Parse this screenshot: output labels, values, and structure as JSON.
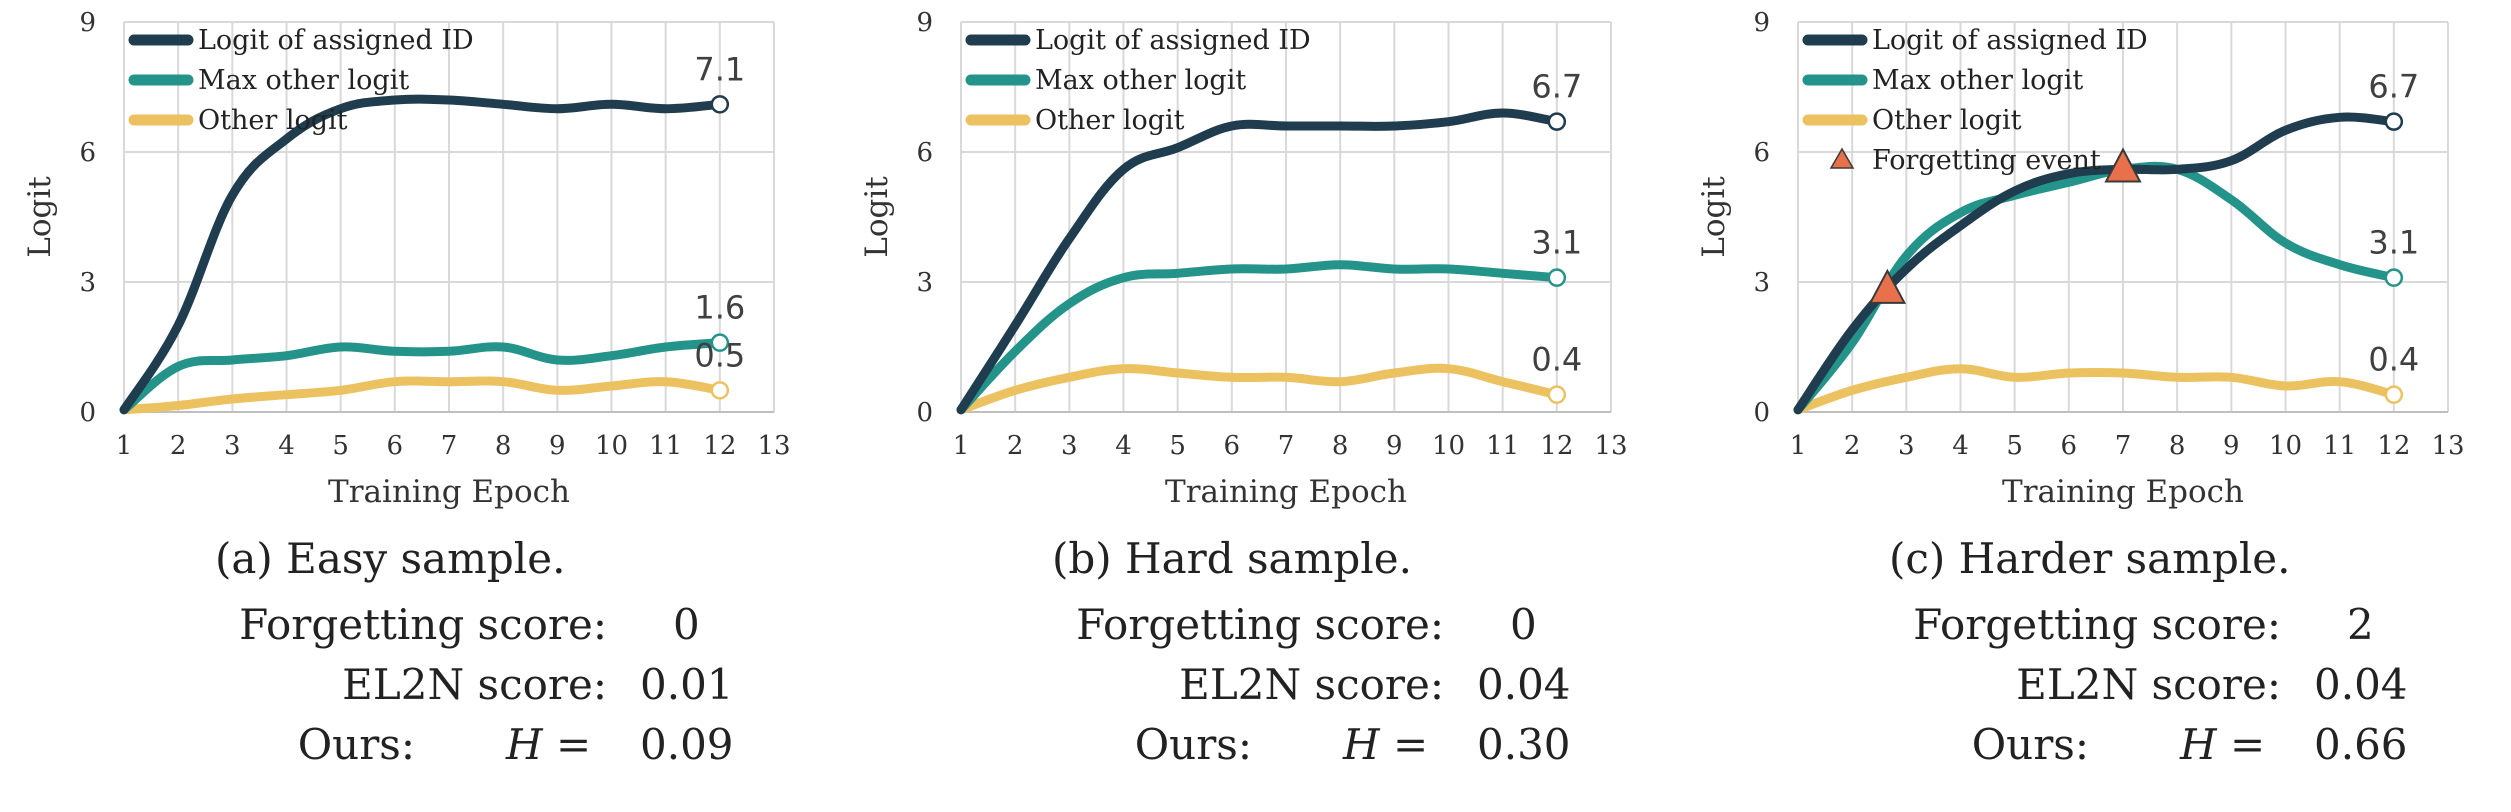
{
  "chart_data": [
    {
      "type": "line",
      "id": "a",
      "xlabel": "Training Epoch",
      "ylabel": "Logit",
      "xlim": [
        1,
        13
      ],
      "ylim": [
        0,
        9
      ],
      "x_ticks": [
        "1",
        "2",
        "3",
        "4",
        "5",
        "6",
        "7",
        "8",
        "9",
        "10",
        "11",
        "12",
        "13"
      ],
      "y_ticks": [
        "0",
        "3",
        "6",
        "9"
      ],
      "grid": true,
      "legend_position": "top-left",
      "x": [
        1,
        2,
        3,
        4,
        5,
        6,
        7,
        8,
        9,
        10,
        11,
        12
      ],
      "series": [
        {
          "name": "Logit of assigned ID",
          "color": "#1f3d4f",
          "values": [
            0.05,
            2.0,
            5.0,
            6.3,
            7.0,
            7.2,
            7.2,
            7.1,
            7.0,
            7.1,
            7.0,
            7.1
          ],
          "end_label": "7.1"
        },
        {
          "name": "Max other logit",
          "color": "#24948a",
          "values": [
            0.05,
            1.05,
            1.2,
            1.3,
            1.5,
            1.4,
            1.4,
            1.5,
            1.2,
            1.3,
            1.5,
            1.6
          ],
          "end_label": "1.6"
        },
        {
          "name": "Other logit",
          "color": "#ecc261",
          "values": [
            0.05,
            0.15,
            0.3,
            0.4,
            0.5,
            0.7,
            0.7,
            0.7,
            0.5,
            0.6,
            0.7,
            0.5
          ],
          "end_label": "0.5"
        }
      ],
      "forgetting_events": [],
      "caption": {
        "title": "(a) Easy sample.",
        "forgetting_label": "Forgetting score:",
        "forgetting_value": "0",
        "el2n_label": "EL2N score:",
        "el2n_value": "0.01",
        "ours_label": "Ours:",
        "h_label": "H =",
        "ours_value": "0.09"
      }
    },
    {
      "type": "line",
      "id": "b",
      "xlabel": "Training Epoch",
      "ylabel": "Logit",
      "xlim": [
        1,
        13
      ],
      "ylim": [
        0,
        9
      ],
      "x_ticks": [
        "1",
        "2",
        "3",
        "4",
        "5",
        "6",
        "7",
        "8",
        "9",
        "10",
        "11",
        "12",
        "13"
      ],
      "y_ticks": [
        "0",
        "3",
        "6",
        "9"
      ],
      "grid": true,
      "legend_position": "top-left",
      "x": [
        1,
        2,
        3,
        4,
        5,
        6,
        7,
        8,
        9,
        10,
        11,
        12
      ],
      "series": [
        {
          "name": "Logit of assigned ID",
          "color": "#1f3d4f",
          "values": [
            0.05,
            2.0,
            4.0,
            5.6,
            6.1,
            6.6,
            6.6,
            6.6,
            6.6,
            6.7,
            6.9,
            6.7
          ],
          "end_label": "6.7"
        },
        {
          "name": "Max other logit",
          "color": "#24948a",
          "values": [
            0.05,
            1.4,
            2.5,
            3.1,
            3.2,
            3.3,
            3.3,
            3.4,
            3.3,
            3.3,
            3.2,
            3.1
          ],
          "end_label": "3.1"
        },
        {
          "name": "Other logit",
          "color": "#ecc261",
          "values": [
            0.05,
            0.5,
            0.8,
            1.0,
            0.9,
            0.8,
            0.8,
            0.7,
            0.9,
            1.0,
            0.7,
            0.4
          ],
          "end_label": "0.4"
        }
      ],
      "forgetting_events": [],
      "caption": {
        "title": "(b) Hard sample.",
        "forgetting_label": "Forgetting score:",
        "forgetting_value": "0",
        "el2n_label": "EL2N score:",
        "el2n_value": "0.04",
        "ours_label": "Ours:",
        "h_label": "H =",
        "ours_value": "0.30"
      }
    },
    {
      "type": "line",
      "id": "c",
      "xlabel": "Training Epoch",
      "ylabel": "Logit",
      "xlim": [
        1,
        13
      ],
      "ylim": [
        0,
        9
      ],
      "x_ticks": [
        "1",
        "2",
        "3",
        "4",
        "5",
        "6",
        "7",
        "8",
        "9",
        "10",
        "11",
        "12",
        "13"
      ],
      "y_ticks": [
        "0",
        "3",
        "6",
        "9"
      ],
      "grid": true,
      "legend_position": "top-left",
      "x": [
        1,
        2,
        3,
        4,
        5,
        6,
        7,
        8,
        9,
        10,
        11,
        12
      ],
      "series": [
        {
          "name": "Logit of assigned ID",
          "color": "#1f3d4f",
          "values": [
            0.05,
            1.9,
            3.3,
            4.3,
            5.1,
            5.5,
            5.6,
            5.6,
            5.8,
            6.5,
            6.8,
            6.7
          ],
          "end_label": "6.7"
        },
        {
          "name": "Max other logit",
          "color": "#24948a",
          "values": [
            0.05,
            1.6,
            3.6,
            4.6,
            5.0,
            5.3,
            5.6,
            5.6,
            4.9,
            3.9,
            3.4,
            3.1
          ],
          "end_label": "3.1"
        },
        {
          "name": "Other logit",
          "color": "#ecc261",
          "values": [
            0.05,
            0.5,
            0.8,
            1.0,
            0.8,
            0.9,
            0.9,
            0.8,
            0.8,
            0.6,
            0.7,
            0.4
          ],
          "end_label": "0.4"
        }
      ],
      "forgetting_events": [
        {
          "x": 2.65,
          "y": 2.8
        },
        {
          "x": 7.0,
          "y": 5.6
        }
      ],
      "forgetting_legend": "Forgetting event",
      "forgetting_color": "#e8704a",
      "caption": {
        "title": "(c) Harder sample.",
        "forgetting_label": "Forgetting score:",
        "forgetting_value": "2",
        "el2n_label": "EL2N score:",
        "el2n_value": "0.04",
        "ours_label": "Ours:",
        "h_label": "H =",
        "ours_value": "0.66"
      }
    }
  ]
}
